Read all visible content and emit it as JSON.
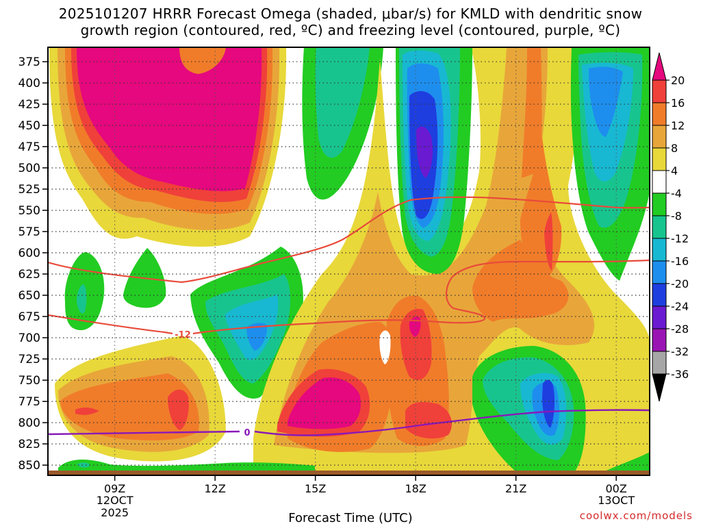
{
  "title_line1": "2025101207 HRRR Forecast Omega (shaded, μbar/s) for KMLD with dendritic snow",
  "title_line2": "growth region (contoured, red, ºC) and freezing level (contoured, purple, ºC)",
  "x_axis_title": "Forecast Time (UTC)",
  "credit": "coolwx.com/models",
  "chart_data": {
    "type": "heatmap",
    "variable": "Omega",
    "units": "μbar/s",
    "y_ticks": [
      375,
      400,
      425,
      450,
      475,
      500,
      525,
      550,
      575,
      600,
      625,
      650,
      675,
      700,
      725,
      750,
      775,
      800,
      825,
      850
    ],
    "x_ticks": [
      {
        "label": "09Z",
        "sub1": "12OCT",
        "sub2": "2025",
        "hour": 9
      },
      {
        "label": "12Z",
        "sub1": "",
        "sub2": "",
        "hour": 12
      },
      {
        "label": "15Z",
        "sub1": "",
        "sub2": "",
        "hour": 15
      },
      {
        "label": "18Z",
        "sub1": "",
        "sub2": "",
        "hour": 18
      },
      {
        "label": "21Z",
        "sub1": "",
        "sub2": "",
        "hour": 21
      },
      {
        "label": "00Z",
        "sub1": "13OCT",
        "sub2": "",
        "hour": 24
      }
    ],
    "x_range_hours": [
      7,
      25
    ],
    "y_range_mb": [
      358,
      862
    ],
    "grid": true,
    "colorbar": {
      "labels": [
        "20",
        "16",
        "12",
        "8",
        "4",
        "-4",
        "-8",
        "-12",
        "-16",
        "-20",
        "-24",
        "-28",
        "-32",
        "-36"
      ],
      "bins": [
        {
          "range": ">20",
          "color": "#e5087e"
        },
        {
          "range": "16 to 20",
          "color": "#f0403a"
        },
        {
          "range": "12 to 16",
          "color": "#f07c2a"
        },
        {
          "range": "8 to 12",
          "color": "#e8a63a"
        },
        {
          "range": "4 to 8",
          "color": "#e8d83a"
        },
        {
          "range": "-4 to 4",
          "color": "#ffffff"
        },
        {
          "range": "-8 to -4",
          "color": "#22cc22"
        },
        {
          "range": "-12 to -8",
          "color": "#18c48e"
        },
        {
          "range": "-16 to -12",
          "color": "#18b8d2"
        },
        {
          "range": "-20 to -16",
          "color": "#1e8eee"
        },
        {
          "range": "-24 to -20",
          "color": "#1e3ee0"
        },
        {
          "range": "-28 to -24",
          "color": "#6a1ad0"
        },
        {
          "range": "-32 to -28",
          "color": "#9a14b4"
        },
        {
          "range": "-36 to -32",
          "color": "#a6a6a6"
        },
        {
          "range": "<-36",
          "color": "#000000"
        }
      ]
    },
    "contours": [
      {
        "color": "#e84a3a",
        "label": "-12",
        "description": "dendritic snow growth region boundary, lower"
      },
      {
        "color": "#e84a3a",
        "label": "",
        "description": "dendritic snow growth region boundary, upper"
      },
      {
        "color": "#8a18b8",
        "label": "0",
        "description": "freezing level"
      }
    ],
    "ground_color": "#9a5a2a"
  }
}
